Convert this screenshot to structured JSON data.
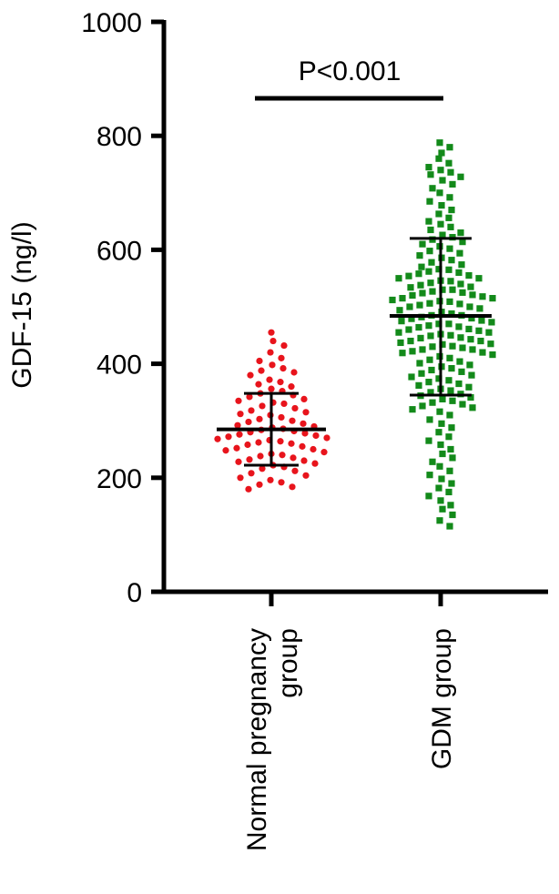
{
  "chart_data": {
    "type": "scatter",
    "ylabel": "GDF-15 (ng/l)",
    "ylim": [
      0,
      1000
    ],
    "yticks": [
      0,
      200,
      400,
      600,
      800,
      1000
    ],
    "grid": false,
    "categories": [
      "Normal pregnancy group",
      "GDM group"
    ],
    "category_label_lines": [
      [
        "Normal pregnancy",
        "group"
      ],
      [
        "GDM group"
      ]
    ],
    "annotation": {
      "text": "P<0.001",
      "from": "Normal pregnancy group",
      "to": "GDM group"
    },
    "series": [
      {
        "category": "Normal pregnancy group",
        "color": "#e8141c",
        "marker": "circle",
        "mean": 285,
        "sd_low": 222,
        "sd_high": 348,
        "values": [
          455,
          440,
          432,
          420,
          410,
          405,
          398,
          392,
          388,
          385,
          380,
          372,
          368,
          364,
          360,
          356,
          352,
          348,
          345,
          342,
          338,
          335,
          332,
          330,
          326,
          322,
          318,
          315,
          312,
          310,
          306,
          303,
          300,
          298,
          295,
          292,
          290,
          288,
          286,
          284,
          282,
          280,
          278,
          276,
          274,
          272,
          270,
          268,
          266,
          264,
          262,
          260,
          258,
          255,
          252,
          250,
          248,
          245,
          242,
          240,
          238,
          235,
          232,
          230,
          228,
          225,
          222,
          219,
          216,
          212,
          208,
          204,
          200,
          196,
          192,
          188,
          184,
          180
        ]
      },
      {
        "category": "GDM group",
        "color": "#138a1a",
        "marker": "square",
        "mean": 484,
        "sd_low": 345,
        "sd_high": 620,
        "values": [
          788,
          780,
          770,
          760,
          752,
          745,
          740,
          736,
          732,
          728,
          722,
          715,
          708,
          700,
          692,
          685,
          678,
          670,
          663,
          656,
          650,
          645,
          640,
          635,
          630,
          626,
          622,
          618,
          614,
          610,
          606,
          602,
          598,
          594,
          590,
          586,
          582,
          578,
          574,
          570,
          566,
          562,
          558,
          554,
          550,
          546,
          542,
          538,
          534,
          530,
          527,
          524,
          521,
          518,
          515,
          512,
          509,
          506,
          503,
          500,
          497,
          494,
          491,
          488,
          485,
          482,
          479,
          476,
          473,
          470,
          467,
          464,
          461,
          458,
          455,
          452,
          449,
          446,
          443,
          440,
          437,
          434,
          431,
          428,
          425,
          422,
          419,
          416,
          413,
          410,
          407,
          404,
          401,
          398,
          395,
          392,
          389,
          386,
          383,
          380,
          377,
          374,
          371,
          368,
          365,
          362,
          359,
          356,
          353,
          350,
          347,
          344,
          341,
          338,
          335,
          332,
          329,
          326,
          323,
          320,
          316,
          310,
          302,
          295,
          288,
          280,
          272,
          265,
          258,
          250,
          242,
          235,
          228,
          220,
          212,
          205,
          198,
          190,
          182,
          175,
          168,
          160,
          152,
          145,
          135,
          125,
          115,
          485,
          480,
          475,
          470,
          465,
          460,
          455,
          450,
          445,
          440,
          435,
          430,
          425,
          420,
          500,
          505,
          510,
          515,
          520,
          525,
          530,
          535,
          540,
          545,
          550,
          555,
          560,
          565
        ]
      }
    ]
  }
}
